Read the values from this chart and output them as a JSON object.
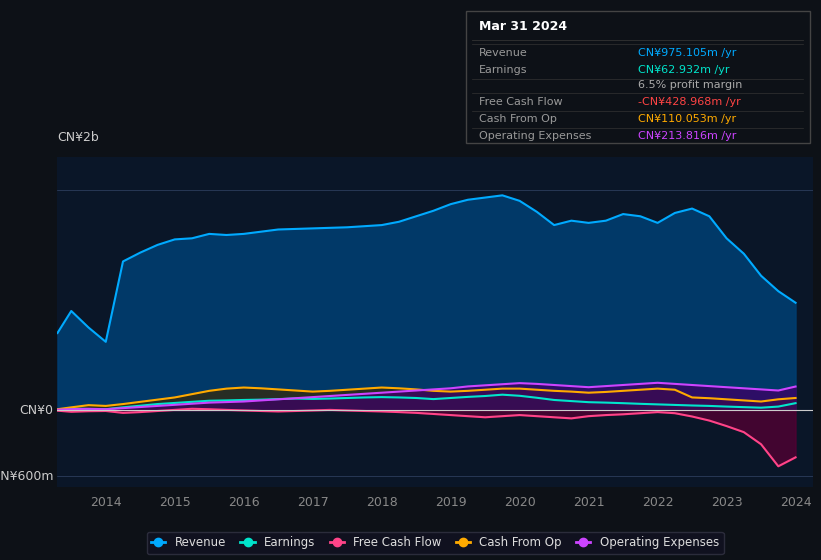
{
  "bg_color": "#0d1117",
  "plot_bg_color": "#0a1628",
  "title_box": {
    "date": "Mar 31 2024",
    "rows": [
      {
        "label": "Revenue",
        "value": "CN¥975.105m /yr",
        "value_color": "#00aaff"
      },
      {
        "label": "Earnings",
        "value": "CN¥62.932m /yr",
        "value_color": "#00e5cc"
      },
      {
        "label": "",
        "value": "6.5% profit margin",
        "value_color": "#aaaaaa"
      },
      {
        "label": "Free Cash Flow",
        "value": "-CN¥428.968m /yr",
        "value_color": "#ff4444"
      },
      {
        "label": "Cash From Op",
        "value": "CN¥110.053m /yr",
        "value_color": "#ffaa00"
      },
      {
        "label": "Operating Expenses",
        "value": "CN¥213.816m /yr",
        "value_color": "#cc44ff"
      }
    ]
  },
  "ylabel_top": "CN¥2b",
  "ylabel_zero": "CN¥0",
  "ylabel_bottom": "-CN¥600m",
  "years": [
    2013.3,
    2013.5,
    2013.75,
    2014.0,
    2014.25,
    2014.5,
    2014.75,
    2015.0,
    2015.25,
    2015.5,
    2015.75,
    2016.0,
    2016.25,
    2016.5,
    2016.75,
    2017.0,
    2017.25,
    2017.5,
    2017.75,
    2018.0,
    2018.25,
    2018.5,
    2018.75,
    2019.0,
    2019.25,
    2019.5,
    2019.75,
    2020.0,
    2020.25,
    2020.5,
    2020.75,
    2021.0,
    2021.25,
    2021.5,
    2021.75,
    2022.0,
    2022.25,
    2022.5,
    2022.75,
    2023.0,
    2023.25,
    2023.5,
    2023.75,
    2024.0
  ],
  "revenue": [
    700,
    900,
    750,
    620,
    1350,
    1430,
    1500,
    1550,
    1560,
    1600,
    1590,
    1600,
    1620,
    1640,
    1645,
    1650,
    1655,
    1660,
    1670,
    1680,
    1710,
    1760,
    1810,
    1870,
    1910,
    1930,
    1950,
    1900,
    1800,
    1680,
    1720,
    1700,
    1720,
    1780,
    1760,
    1700,
    1790,
    1830,
    1760,
    1560,
    1420,
    1220,
    1080,
    975
  ],
  "earnings": [
    5,
    15,
    10,
    8,
    25,
    40,
    55,
    65,
    75,
    85,
    88,
    92,
    95,
    100,
    105,
    102,
    105,
    110,
    115,
    118,
    115,
    110,
    100,
    110,
    120,
    128,
    140,
    130,
    112,
    92,
    82,
    72,
    68,
    63,
    57,
    52,
    47,
    42,
    38,
    32,
    27,
    22,
    32,
    63
  ],
  "free_cash_flow": [
    -5,
    -15,
    -10,
    -8,
    -25,
    -18,
    -8,
    2,
    12,
    8,
    2,
    -3,
    -8,
    -12,
    -8,
    -3,
    2,
    -3,
    -8,
    -12,
    -18,
    -25,
    -35,
    -45,
    -55,
    -65,
    -55,
    -45,
    -55,
    -65,
    -75,
    -55,
    -45,
    -38,
    -28,
    -18,
    -28,
    -58,
    -95,
    -145,
    -200,
    -310,
    -510,
    -429
  ],
  "cash_from_op": [
    8,
    25,
    45,
    38,
    55,
    75,
    95,
    115,
    145,
    175,
    195,
    205,
    198,
    188,
    178,
    168,
    175,
    185,
    195,
    205,
    198,
    188,
    175,
    168,
    175,
    185,
    195,
    195,
    185,
    175,
    168,
    158,
    165,
    175,
    185,
    195,
    185,
    115,
    108,
    98,
    88,
    78,
    98,
    110
  ],
  "operating_expenses": [
    4,
    8,
    12,
    8,
    18,
    28,
    38,
    48,
    58,
    68,
    73,
    78,
    88,
    98,
    108,
    118,
    128,
    138,
    148,
    158,
    168,
    178,
    188,
    198,
    215,
    225,
    235,
    245,
    238,
    228,
    218,
    208,
    218,
    228,
    238,
    248,
    238,
    228,
    218,
    208,
    198,
    188,
    178,
    214
  ],
  "revenue_color": "#00aaff",
  "earnings_color": "#00e5cc",
  "free_cash_flow_color": "#ff4488",
  "cash_from_op_color": "#ffaa00",
  "operating_expenses_color": "#cc44ff",
  "x_ticks": [
    2014,
    2015,
    2016,
    2017,
    2018,
    2019,
    2020,
    2021,
    2022,
    2023,
    2024
  ],
  "x_tick_labels": [
    "2014",
    "2015",
    "2016",
    "2017",
    "2018",
    "2019",
    "2020",
    "2021",
    "2022",
    "2023",
    "2024"
  ],
  "ylim": [
    -700,
    2300
  ],
  "ytop_val": 2000,
  "yzero_val": 0,
  "ybottom_val": -600,
  "legend_labels": [
    "Revenue",
    "Earnings",
    "Free Cash Flow",
    "Cash From Op",
    "Operating Expenses"
  ],
  "legend_colors": [
    "#00aaff",
    "#00e5cc",
    "#ff4488",
    "#ffaa00",
    "#cc44ff"
  ]
}
